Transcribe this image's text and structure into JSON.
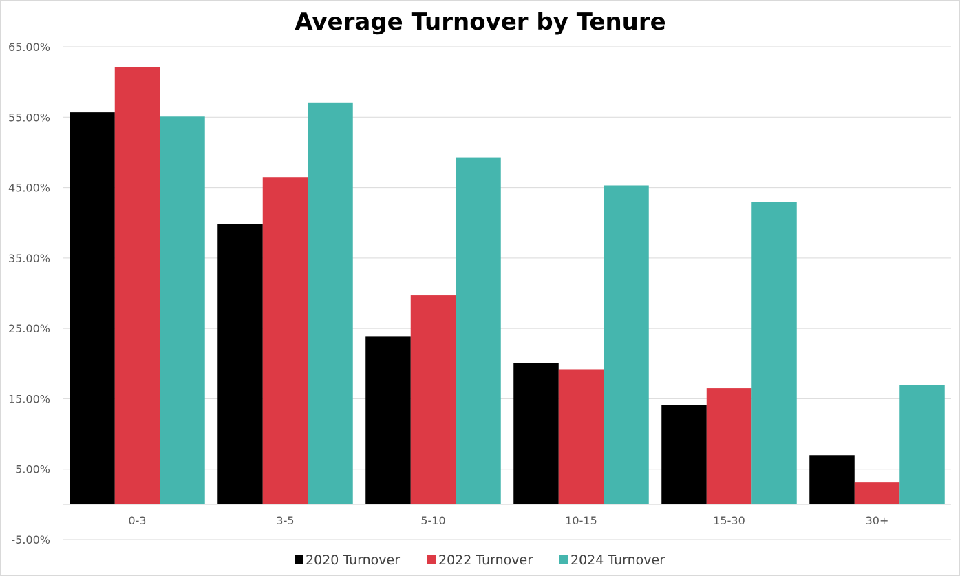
{
  "chart_data": {
    "type": "bar",
    "title": "Average Turnover by Tenure",
    "xlabel": "",
    "ylabel": "",
    "categories": [
      "0-3",
      "3-5",
      "5-10",
      "10-15",
      "15-30",
      "30+"
    ],
    "series": [
      {
        "name": "2020 Turnover",
        "color": "#000000",
        "values": [
          55.7,
          39.8,
          23.9,
          20.1,
          14.1,
          7.0
        ]
      },
      {
        "name": "2022 Turnover",
        "color": "#dd3a45",
        "values": [
          62.1,
          46.5,
          29.7,
          19.2,
          16.5,
          3.1
        ]
      },
      {
        "name": "2024 Turnover",
        "color": "#45b6ae",
        "values": [
          55.1,
          57.1,
          49.3,
          45.3,
          43.0,
          16.9
        ]
      }
    ],
    "ylim": [
      -5,
      65
    ],
    "yticks": [
      65,
      55,
      45,
      35,
      25,
      15,
      5,
      -5
    ],
    "ytick_labels": [
      "65.00%",
      "55.00%",
      "45.00%",
      "35.00%",
      "25.00%",
      "15.00%",
      "5.00%",
      "-5.00%"
    ],
    "grid": true,
    "legend_position": "bottom"
  }
}
